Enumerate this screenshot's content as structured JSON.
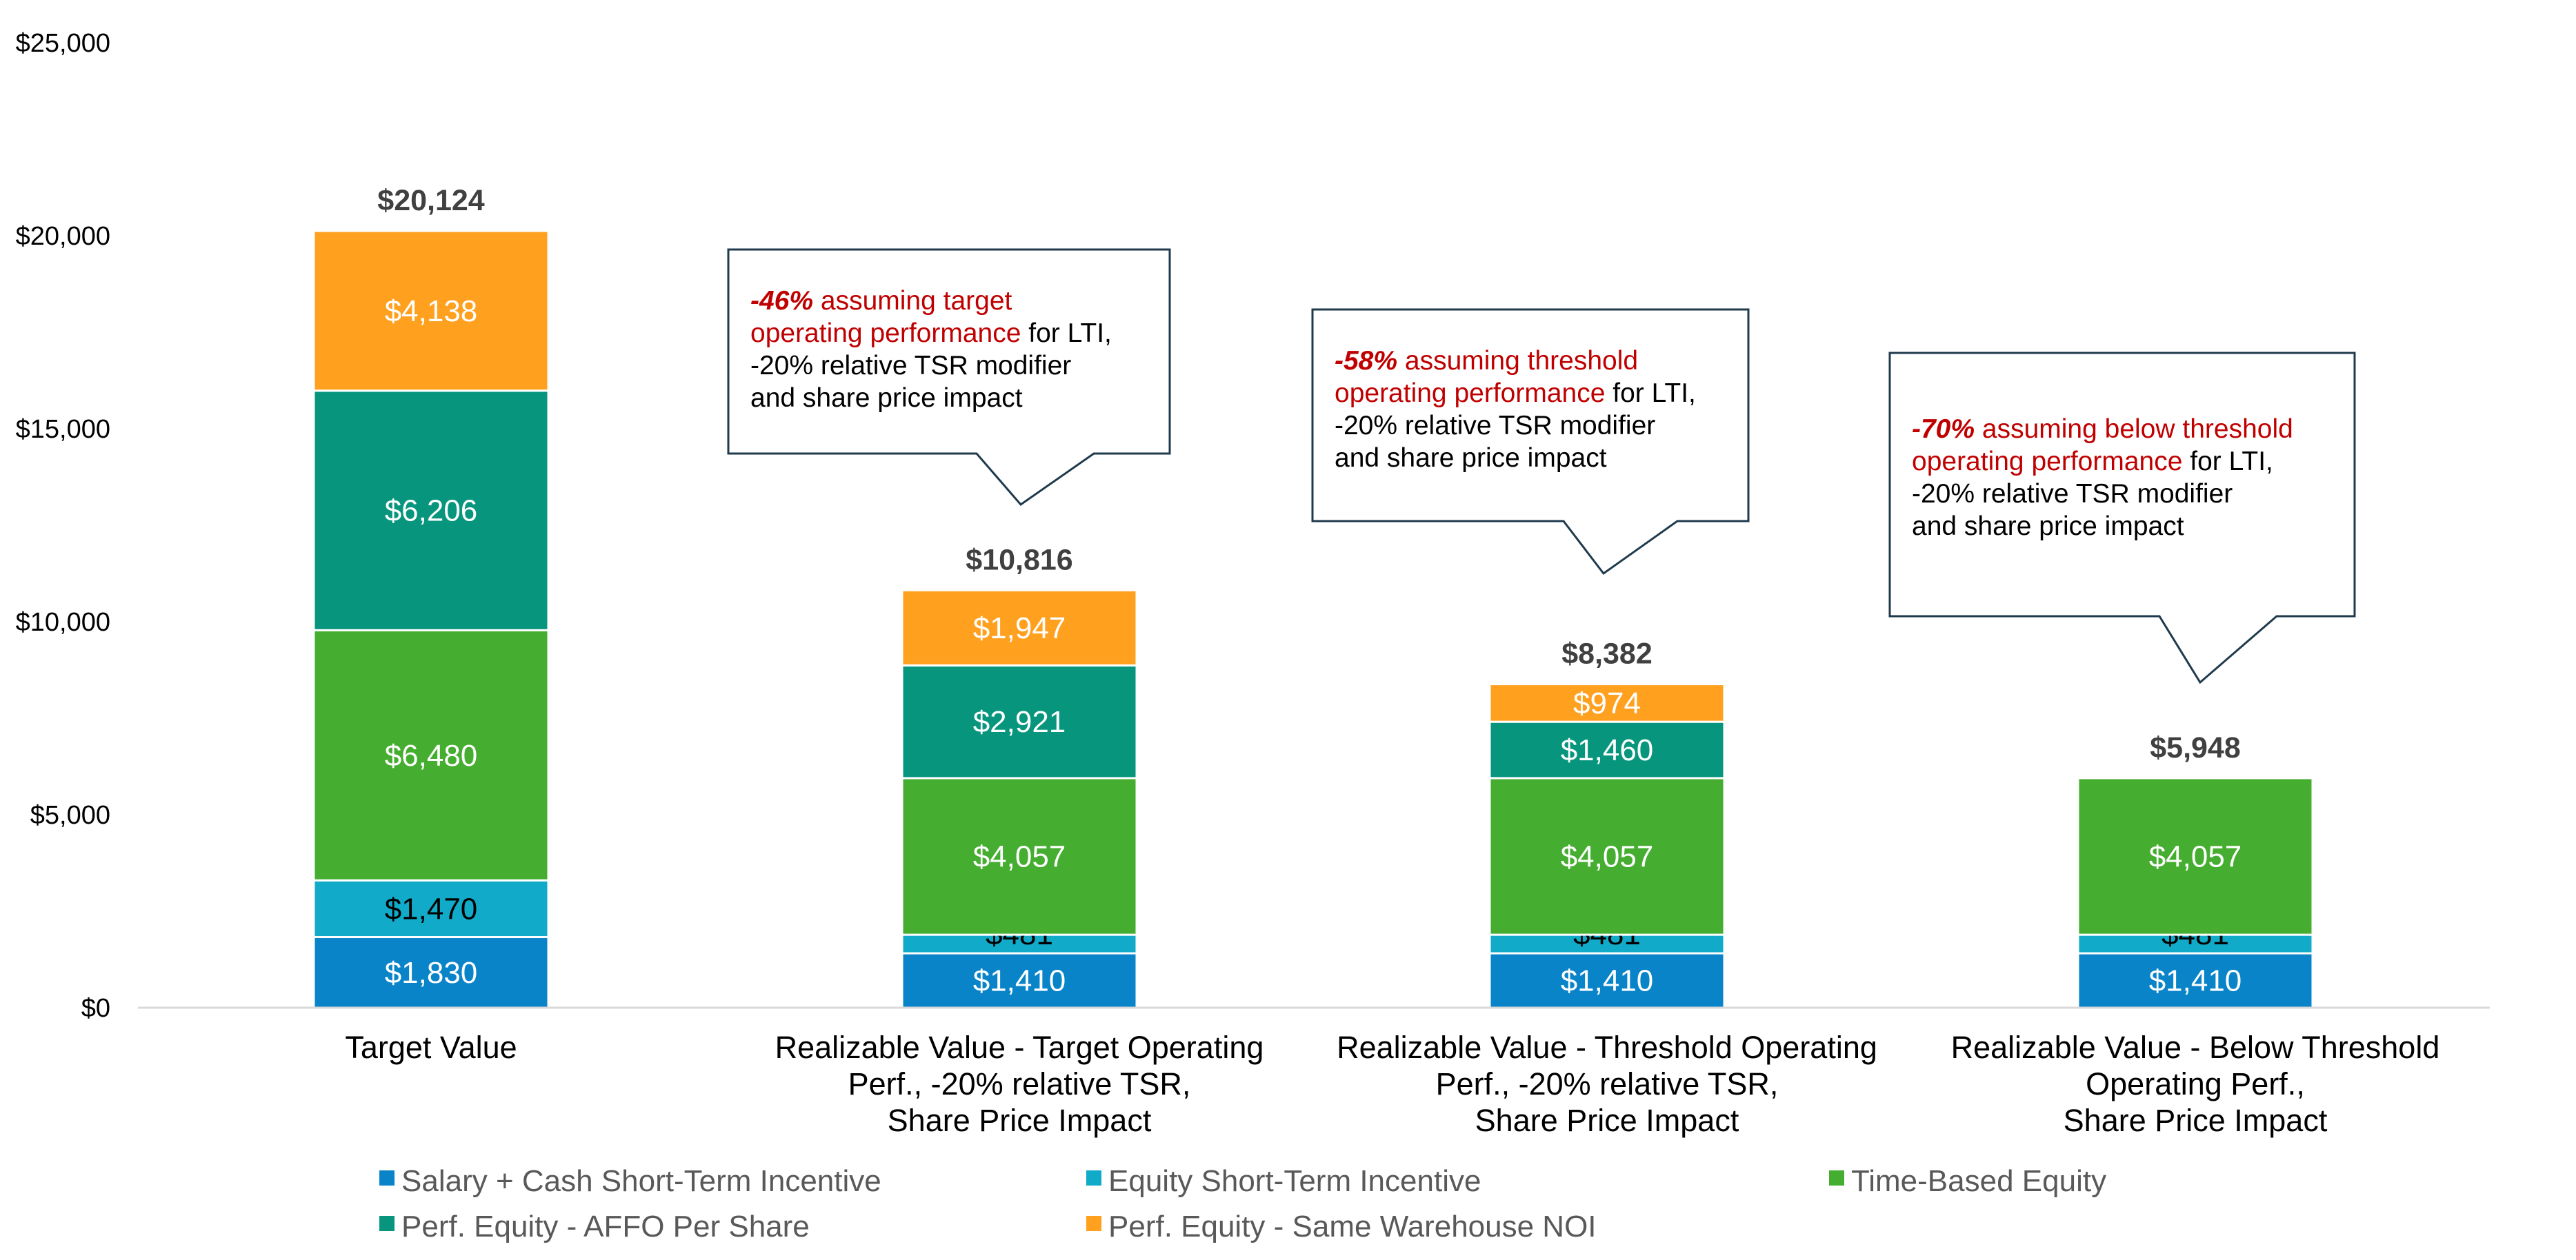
{
  "chart_data": {
    "type": "bar",
    "stacked": true,
    "categories": [
      [
        "Target Value"
      ],
      [
        "Realizable Value - Target Operating",
        "Perf., -20% relative TSR,",
        "Share Price Impact"
      ],
      [
        "Realizable Value - Threshold Operating",
        "Perf., -20% relative TSR,",
        "Share Price Impact"
      ],
      [
        "Realizable Value - Below Threshold",
        "Operating Perf.,",
        "Share Price Impact"
      ]
    ],
    "series": [
      {
        "name": "Salary + Cash Short-Term Incentive",
        "color": "#0A84C8",
        "values": [
          1830,
          1410,
          1410,
          1410
        ],
        "labels": [
          "$1,830",
          "$1,410",
          "$1,410",
          "$1,410"
        ],
        "label_color": "#ffffff"
      },
      {
        "name": "Equity Short-Term Incentive",
        "color": "#11ABC9",
        "values": [
          1470,
          481,
          481,
          481
        ],
        "labels": [
          "$1,470",
          "$481",
          "$481",
          "$481"
        ],
        "label_color": "#000000"
      },
      {
        "name": "Time-Based Equity",
        "color": "#45AD2F",
        "values": [
          6480,
          4057,
          4057,
          4057
        ],
        "labels": [
          "$6,480",
          "$4,057",
          "$4,057",
          "$4,057"
        ],
        "label_color": "#ffffff"
      },
      {
        "name": "Perf. Equity - AFFO Per Share",
        "color": "#07967D",
        "values": [
          6206,
          2921,
          1460,
          0
        ],
        "labels": [
          "$6,206",
          "$2,921",
          "$1,460",
          ""
        ],
        "label_color": "#ffffff"
      },
      {
        "name": "Perf. Equity - Same Warehouse NOI",
        "color": "#FFA01F",
        "values": [
          4138,
          1947,
          974,
          0
        ],
        "labels": [
          "$4,138",
          "$1,947",
          "$974",
          ""
        ],
        "label_color": "#ffffff"
      }
    ],
    "totals": [
      "$20,124",
      "$10,816",
      "$8,382",
      "$5,948"
    ],
    "y_ticks": [
      0,
      5000,
      10000,
      15000,
      20000,
      25000
    ],
    "y_tick_labels": [
      "$0",
      "$5,000",
      "$10,000",
      "$15,000",
      "$20,000",
      "$25,000"
    ],
    "ylim": [
      0,
      25000
    ],
    "xlabel": "",
    "ylabel": "",
    "title": "",
    "grid": false,
    "legend_position": "bottom",
    "annotations": [
      {
        "category_index": 1,
        "lines": [
          [
            {
              "t": "-46%",
              "c": "#C00000",
              "b": true,
              "i": true
            },
            {
              "t": " assuming target",
              "c": "#C00000"
            }
          ],
          [
            {
              "t": "operating performance",
              "c": "#C00000"
            },
            {
              "t": " for LTI,",
              "c": "#000000"
            }
          ],
          [
            {
              "t": "-20% relative TSR modifier",
              "c": "#000000"
            }
          ],
          [
            {
              "t": "and share price impact",
              "c": "#000000"
            }
          ]
        ]
      },
      {
        "category_index": 2,
        "lines": [
          [
            {
              "t": "-58%",
              "c": "#C00000",
              "b": true,
              "i": true
            },
            {
              "t": " assuming threshold",
              "c": "#C00000"
            }
          ],
          [
            {
              "t": "operating performance",
              "c": "#C00000"
            },
            {
              "t": " for LTI,",
              "c": "#000000"
            }
          ],
          [
            {
              "t": "-20% relative TSR modifier",
              "c": "#000000"
            }
          ],
          [
            {
              "t": "and share price impact",
              "c": "#000000"
            }
          ]
        ]
      },
      {
        "category_index": 3,
        "lines": [
          [
            {
              "t": "-70%",
              "c": "#C00000",
              "b": true,
              "i": true
            },
            {
              "t": " assuming below threshold",
              "c": "#C00000"
            }
          ],
          [
            {
              "t": "operating performance",
              "c": "#C00000"
            },
            {
              "t": " for LTI,",
              "c": "#000000"
            }
          ],
          [
            {
              "t": "-20% relative TSR modifier",
              "c": "#000000"
            }
          ],
          [
            {
              "t": "and share price impact",
              "c": "#000000"
            }
          ]
        ]
      }
    ]
  }
}
